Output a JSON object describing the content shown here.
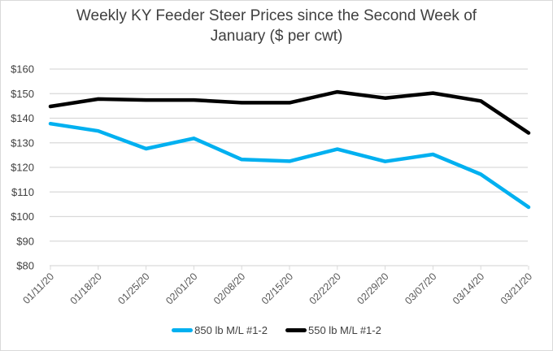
{
  "chart_data": {
    "type": "line",
    "title": "Weekly KY Feeder Steer Prices since the Second Week of January ($ per cwt)",
    "title_lines": [
      "Weekly KY Feeder Steer Prices since the Second Week of",
      "January ($ per cwt)"
    ],
    "xlabel": "",
    "ylabel": "",
    "categories": [
      "01/11/20",
      "01/18/20",
      "01/25/20",
      "02/01/20",
      "02/08/20",
      "02/15/20",
      "02/22/20",
      "02/29/20",
      "03/07/20",
      "03/14/20",
      "03/21/20"
    ],
    "ylim": [
      80,
      160
    ],
    "yticks": [
      80,
      90,
      100,
      110,
      120,
      130,
      140,
      150,
      160
    ],
    "ytick_labels": [
      "$80",
      "$90",
      "$100",
      "$110",
      "$120",
      "$130",
      "$140",
      "$150",
      "$160"
    ],
    "grid": true,
    "legend_position": "bottom",
    "series": [
      {
        "name": "850 lb M/L #1-2",
        "color": "#00b0f0",
        "values": [
          137.8,
          134.8,
          127.6,
          131.8,
          123.2,
          122.5,
          127.4,
          122.4,
          125.3,
          117.2,
          103.8
        ]
      },
      {
        "name": "550 lb M/L #1-2",
        "color": "#000000",
        "values": [
          144.8,
          147.8,
          147.4,
          147.4,
          146.3,
          146.3,
          150.7,
          148.2,
          150.2,
          147.0,
          134.0
        ]
      }
    ]
  }
}
